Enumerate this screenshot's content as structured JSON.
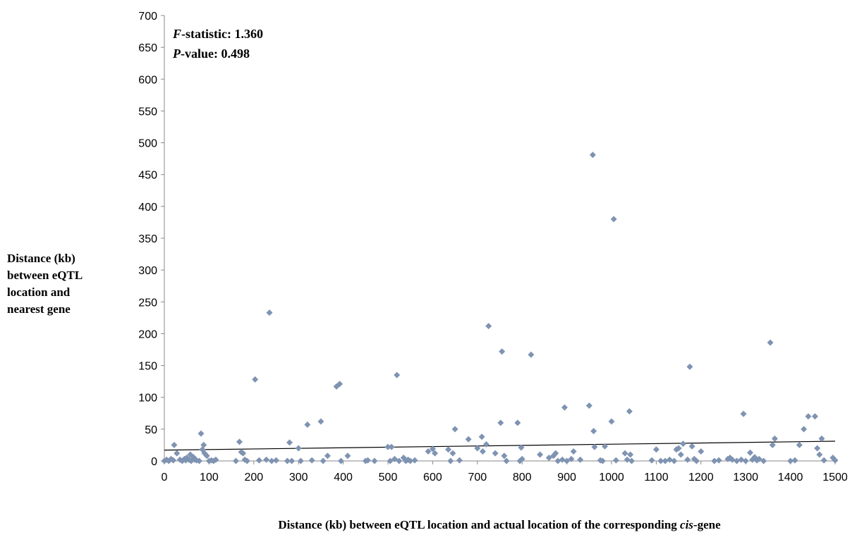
{
  "chart_data": {
    "type": "scatter",
    "title": "",
    "xlabel": "Distance (kb) between eQTL location and actual location of the corresponding",
    "xlabel_italic": "cis",
    "xlabel_suffix": "-gene",
    "ylabel_lines": [
      "Distance (kb)",
      "between eQTL",
      "location and",
      "nearest gene"
    ],
    "xlim": [
      0,
      1500
    ],
    "ylim": [
      0,
      700
    ],
    "xticks": [
      0,
      100,
      200,
      300,
      400,
      500,
      600,
      700,
      800,
      900,
      1000,
      1100,
      1200,
      1300,
      1400,
      1500
    ],
    "yticks": [
      0,
      50,
      100,
      150,
      200,
      250,
      300,
      350,
      400,
      450,
      500,
      550,
      600,
      650,
      700
    ],
    "grid": false,
    "legend": "none",
    "annotations": [
      {
        "var": "F",
        "text": "-statistic: 1.360"
      },
      {
        "var": "P",
        "text": "-value: 0.498"
      }
    ],
    "marker_color": "#7f93b2",
    "trendline": {
      "x": [
        0,
        1500
      ],
      "y": [
        17,
        31
      ],
      "color": "#000000"
    },
    "points": [
      [
        0,
        0
      ],
      [
        5,
        2
      ],
      [
        10,
        0
      ],
      [
        15,
        3
      ],
      [
        20,
        1
      ],
      [
        22,
        25
      ],
      [
        28,
        12
      ],
      [
        35,
        2
      ],
      [
        40,
        0
      ],
      [
        45,
        3
      ],
      [
        48,
        1
      ],
      [
        50,
        5
      ],
      [
        55,
        2
      ],
      [
        58,
        10
      ],
      [
        60,
        0
      ],
      [
        65,
        6
      ],
      [
        68,
        2
      ],
      [
        72,
        1
      ],
      [
        78,
        0
      ],
      [
        82,
        43
      ],
      [
        85,
        18
      ],
      [
        88,
        25
      ],
      [
        90,
        12
      ],
      [
        95,
        8
      ],
      [
        100,
        0
      ],
      [
        105,
        1
      ],
      [
        110,
        0
      ],
      [
        115,
        2
      ],
      [
        160,
        0
      ],
      [
        168,
        30
      ],
      [
        172,
        14
      ],
      [
        176,
        12
      ],
      [
        180,
        2
      ],
      [
        185,
        0
      ],
      [
        203,
        128
      ],
      [
        212,
        1
      ],
      [
        228,
        2
      ],
      [
        235,
        233
      ],
      [
        240,
        0
      ],
      [
        250,
        1
      ],
      [
        275,
        0
      ],
      [
        280,
        29
      ],
      [
        285,
        0
      ],
      [
        300,
        20
      ],
      [
        305,
        0
      ],
      [
        320,
        57
      ],
      [
        330,
        1
      ],
      [
        350,
        62
      ],
      [
        355,
        0
      ],
      [
        365,
        8
      ],
      [
        385,
        117
      ],
      [
        392,
        121
      ],
      [
        395,
        0
      ],
      [
        410,
        8
      ],
      [
        450,
        0
      ],
      [
        455,
        1
      ],
      [
        470,
        0
      ],
      [
        500,
        22
      ],
      [
        505,
        0
      ],
      [
        508,
        22
      ],
      [
        515,
        3
      ],
      [
        520,
        135
      ],
      [
        525,
        0
      ],
      [
        535,
        5
      ],
      [
        540,
        0
      ],
      [
        545,
        2
      ],
      [
        550,
        0
      ],
      [
        560,
        1
      ],
      [
        590,
        15
      ],
      [
        600,
        19
      ],
      [
        605,
        12
      ],
      [
        635,
        18
      ],
      [
        640,
        0
      ],
      [
        645,
        12
      ],
      [
        650,
        50
      ],
      [
        660,
        1
      ],
      [
        680,
        34
      ],
      [
        700,
        20
      ],
      [
        710,
        38
      ],
      [
        712,
        15
      ],
      [
        720,
        26
      ],
      [
        725,
        212
      ],
      [
        740,
        12
      ],
      [
        752,
        60
      ],
      [
        755,
        172
      ],
      [
        760,
        8
      ],
      [
        765,
        0
      ],
      [
        790,
        60
      ],
      [
        795,
        0
      ],
      [
        798,
        21
      ],
      [
        800,
        3
      ],
      [
        820,
        167
      ],
      [
        840,
        10
      ],
      [
        860,
        5
      ],
      [
        870,
        8
      ],
      [
        875,
        12
      ],
      [
        880,
        0
      ],
      [
        890,
        2
      ],
      [
        895,
        84
      ],
      [
        900,
        0
      ],
      [
        910,
        3
      ],
      [
        915,
        15
      ],
      [
        930,
        2
      ],
      [
        950,
        87
      ],
      [
        958,
        481
      ],
      [
        960,
        47
      ],
      [
        962,
        22
      ],
      [
        975,
        1
      ],
      [
        980,
        0
      ],
      [
        985,
        23
      ],
      [
        1000,
        62
      ],
      [
        1005,
        380
      ],
      [
        1010,
        1
      ],
      [
        1030,
        12
      ],
      [
        1035,
        2
      ],
      [
        1040,
        78
      ],
      [
        1042,
        10
      ],
      [
        1045,
        0
      ],
      [
        1090,
        1
      ],
      [
        1100,
        18
      ],
      [
        1110,
        0
      ],
      [
        1120,
        0
      ],
      [
        1130,
        2
      ],
      [
        1140,
        0
      ],
      [
        1145,
        18
      ],
      [
        1150,
        20
      ],
      [
        1155,
        10
      ],
      [
        1160,
        27
      ],
      [
        1170,
        2
      ],
      [
        1175,
        148
      ],
      [
        1180,
        23
      ],
      [
        1185,
        3
      ],
      [
        1190,
        0
      ],
      [
        1200,
        15
      ],
      [
        1230,
        0
      ],
      [
        1240,
        1
      ],
      [
        1260,
        3
      ],
      [
        1265,
        5
      ],
      [
        1270,
        2
      ],
      [
        1280,
        0
      ],
      [
        1290,
        2
      ],
      [
        1295,
        74
      ],
      [
        1300,
        0
      ],
      [
        1310,
        13
      ],
      [
        1315,
        2
      ],
      [
        1320,
        6
      ],
      [
        1325,
        1
      ],
      [
        1330,
        3
      ],
      [
        1340,
        0
      ],
      [
        1355,
        186
      ],
      [
        1360,
        25
      ],
      [
        1365,
        35
      ],
      [
        1400,
        0
      ],
      [
        1410,
        1
      ],
      [
        1420,
        25
      ],
      [
        1430,
        50
      ],
      [
        1440,
        70
      ],
      [
        1455,
        70
      ],
      [
        1460,
        20
      ],
      [
        1465,
        10
      ],
      [
        1470,
        35
      ],
      [
        1475,
        1
      ],
      [
        1495,
        5
      ],
      [
        1500,
        1
      ]
    ]
  }
}
